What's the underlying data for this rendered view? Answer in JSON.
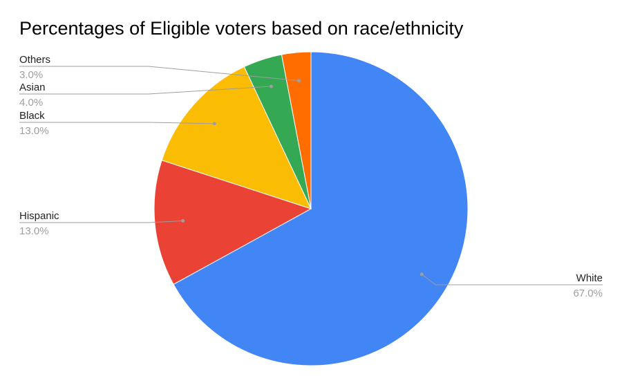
{
  "chart_data": {
    "type": "pie",
    "title": "Percentages of Eligible voters based on race/ethnicity",
    "slices": [
      {
        "label": "White",
        "value": 67.0,
        "value_label": "67.0%",
        "color": "#4285f4"
      },
      {
        "label": "Hispanic",
        "value": 13.0,
        "value_label": "13.0%",
        "color": "#ea4335"
      },
      {
        "label": "Black",
        "value": 13.0,
        "value_label": "13.0%",
        "color": "#fbbc04"
      },
      {
        "label": "Asian",
        "value": 4.0,
        "value_label": "4.0%",
        "color": "#34a853"
      },
      {
        "label": "Others",
        "value": 3.0,
        "value_label": "3.0%",
        "color": "#ff6d01"
      }
    ],
    "start_angle_deg": 0,
    "direction": "clockwise",
    "legend": "none",
    "label_style": "callout-lines"
  }
}
